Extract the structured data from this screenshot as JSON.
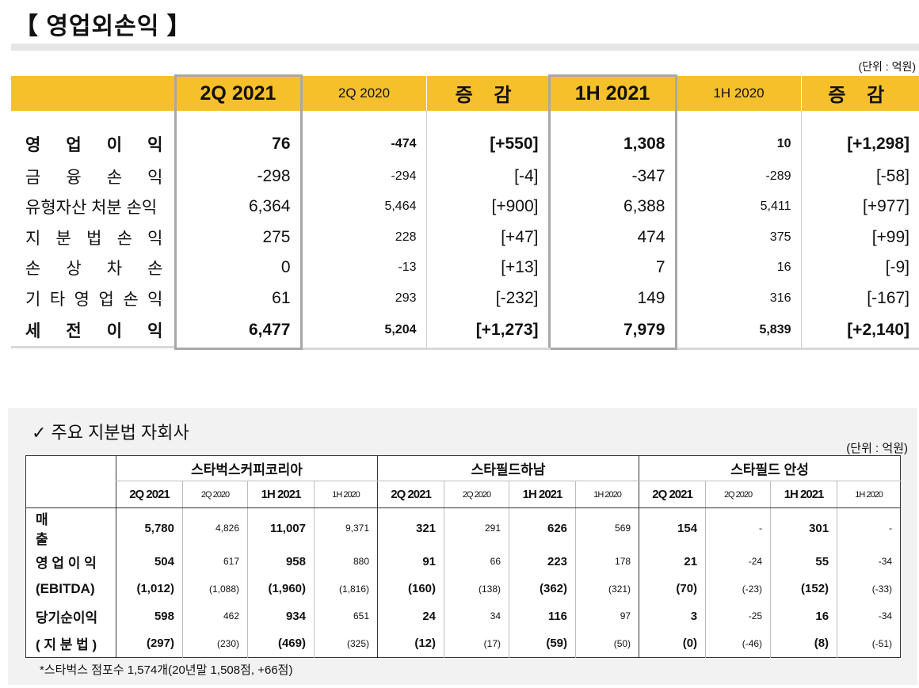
{
  "title": "【 영업외손익 】",
  "unit": "(단위 : 억원)",
  "top_table": {
    "headers": [
      "2Q 2021",
      "2Q 2020",
      "증 감",
      "1H 2021",
      "1H 2020",
      "증 감"
    ],
    "rows": [
      {
        "label": [
          "영",
          "업",
          "이",
          "익"
        ],
        "values": [
          "76",
          "-474",
          "[+550]",
          "1,308",
          "10",
          "[+1,298]"
        ]
      },
      {
        "label": [
          "금",
          "융",
          "손",
          "익"
        ],
        "values": [
          "-298",
          "-294",
          "[-4]",
          "-347",
          "-289",
          "[-58]"
        ]
      },
      {
        "label": [
          "유형자산 처분 손익"
        ],
        "values": [
          "6,364",
          "5,464",
          "[+900]",
          "6,388",
          "5,411",
          "[+977]"
        ]
      },
      {
        "label": [
          "지",
          "분",
          "법",
          "손",
          "익"
        ],
        "values": [
          "275",
          "228",
          "[+47]",
          "474",
          "375",
          "[+99]"
        ]
      },
      {
        "label": [
          "손",
          "상",
          "차",
          "손"
        ],
        "values": [
          "0",
          "-13",
          "[+13]",
          "7",
          "16",
          "[-9]"
        ]
      },
      {
        "label": [
          "기",
          "타",
          "영",
          "업",
          "손",
          "익"
        ],
        "values": [
          "61",
          "293",
          "[-232]",
          "149",
          "316",
          "[-167]"
        ]
      },
      {
        "label": [
          "세",
          "전",
          "이",
          "익"
        ],
        "values": [
          "6,477",
          "5,204",
          "[+1,273]",
          "7,979",
          "5,839",
          "[+2,140]"
        ]
      }
    ]
  },
  "bottom": {
    "title": "✓ 주요 지분법 자회사",
    "unit": "(단위 : 억원)",
    "companies": [
      "스타벅스커피코리아",
      "스타필드하남",
      "스타필드 안성"
    ],
    "subheaders": [
      "2Q 2021",
      "2Q 2020",
      "1H 2021",
      "1H 2020"
    ],
    "rows": [
      {
        "label": "매 출",
        "values": [
          "5,780",
          "4,826",
          "11,007",
          "9,371",
          "321",
          "291",
          "626",
          "569",
          "154",
          "-",
          "301",
          "-"
        ]
      },
      {
        "label": "영 업 이 익",
        "values": [
          "504",
          "617",
          "958",
          "880",
          "91",
          "66",
          "223",
          "178",
          "21",
          "-24",
          "55",
          "-34"
        ]
      },
      {
        "label": "(EBITDA)",
        "values": [
          "(1,012)",
          "(1,088)",
          "(1,960)",
          "(1,816)",
          "(160)",
          "(138)",
          "(362)",
          "(321)",
          "(70)",
          "(-23)",
          "(152)",
          "(-33)"
        ]
      },
      {
        "label": "당기순이익",
        "values": [
          "598",
          "462",
          "934",
          "651",
          "24",
          "34",
          "116",
          "97",
          "3",
          "-25",
          "16",
          "-34"
        ]
      },
      {
        "label": "( 지 분 법 )",
        "values": [
          "(297)",
          "(230)",
          "(469)",
          "(325)",
          "(12)",
          "(17)",
          "(59)",
          "(50)",
          "(0)",
          "(-46)",
          "(8)",
          "(-51)"
        ]
      }
    ],
    "footnote": "*스타벅스 점포수 1,574개(20년말 1,508점, +66점)"
  },
  "colors": {
    "header_bg": "#f6c02b",
    "panel_bg": "#f2f2f2"
  }
}
